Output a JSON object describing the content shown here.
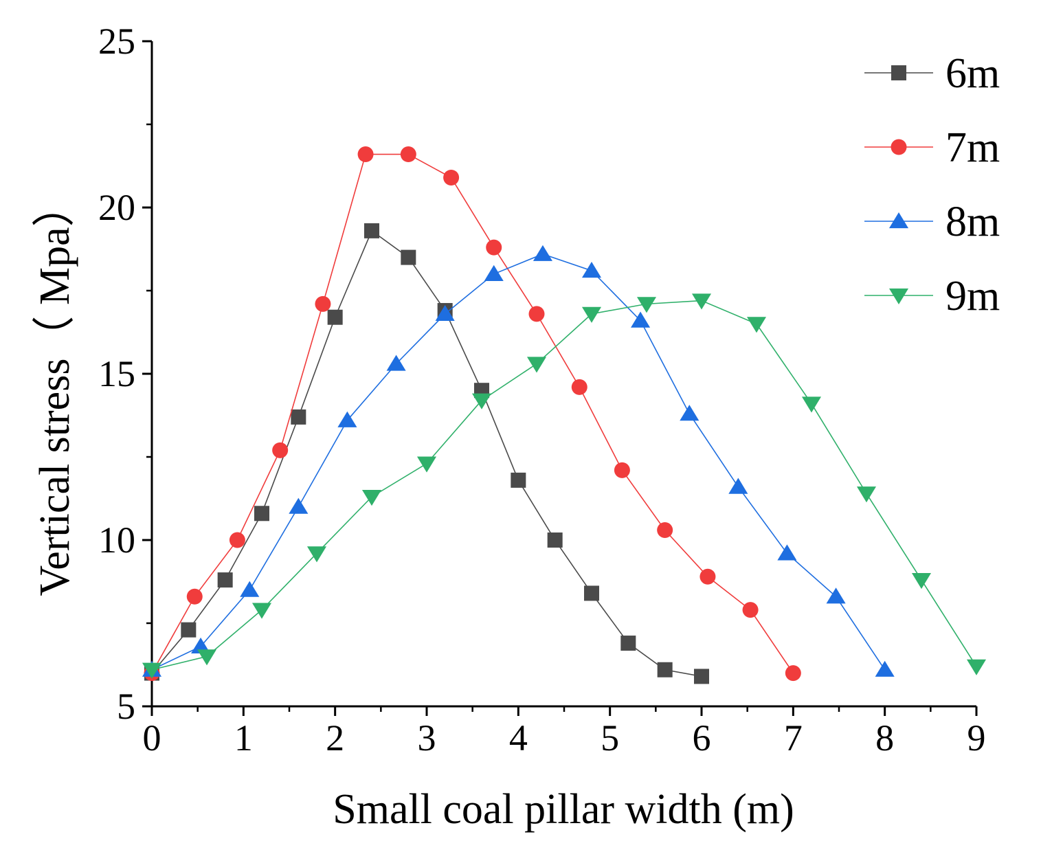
{
  "chart_data": {
    "type": "line",
    "title": "",
    "xlabel": "Small coal pillar width (m)",
    "ylabel": "Vertical stress（ Mpa）",
    "xlim": [
      0,
      9
    ],
    "ylim": [
      5,
      25
    ],
    "x_ticks": [
      0,
      1,
      2,
      3,
      4,
      5,
      6,
      7,
      8,
      9
    ],
    "y_ticks": [
      5,
      10,
      15,
      20,
      25
    ],
    "x_tick_labels": [
      "0",
      "1",
      "2",
      "3",
      "4",
      "5",
      "6",
      "7",
      "8",
      "9"
    ],
    "y_tick_labels": [
      "5",
      "10",
      "15",
      "20",
      "25"
    ],
    "grid": false,
    "legend_position": "top-right",
    "series": [
      {
        "name": "6m",
        "color": "#4a4a4a",
        "marker": "square",
        "x": [
          0,
          0.4,
          0.8,
          1.2,
          1.6,
          2.0,
          2.4,
          2.8,
          3.2,
          3.6,
          4.0,
          4.4,
          4.8,
          5.2,
          5.6,
          6.0
        ],
        "y": [
          6.0,
          7.3,
          8.8,
          10.8,
          13.7,
          16.7,
          19.3,
          18.5,
          16.9,
          14.5,
          11.8,
          10.0,
          8.4,
          6.9,
          6.1,
          5.9
        ]
      },
      {
        "name": "7m",
        "color": "#f03c3c",
        "marker": "circle",
        "x": [
          0,
          0.467,
          0.933,
          1.4,
          1.867,
          2.333,
          2.8,
          3.267,
          3.733,
          4.2,
          4.667,
          5.133,
          5.6,
          6.067,
          6.533,
          7.0
        ],
        "y": [
          6.0,
          8.3,
          10.0,
          12.7,
          17.1,
          21.6,
          21.6,
          20.9,
          18.8,
          16.8,
          14.6,
          12.1,
          10.3,
          8.9,
          7.9,
          6.0
        ]
      },
      {
        "name": "8m",
        "color": "#1e6ee0",
        "marker": "triangle-up",
        "x": [
          0,
          0.533,
          1.067,
          1.6,
          2.133,
          2.667,
          3.2,
          3.733,
          4.267,
          4.8,
          5.333,
          5.867,
          6.4,
          6.933,
          7.467,
          8.0
        ],
        "y": [
          6.1,
          6.8,
          8.5,
          11.0,
          13.6,
          15.3,
          16.8,
          18.0,
          18.6,
          18.1,
          16.6,
          13.8,
          11.6,
          9.6,
          8.3,
          6.1
        ]
      },
      {
        "name": "9m",
        "color": "#2fb06a",
        "marker": "triangle-down",
        "x": [
          0,
          0.6,
          1.2,
          1.8,
          2.4,
          3.0,
          3.6,
          4.2,
          4.8,
          5.4,
          6.0,
          6.6,
          7.2,
          7.8,
          8.4,
          9.0
        ],
        "y": [
          6.1,
          6.5,
          7.9,
          9.6,
          11.3,
          12.3,
          14.2,
          15.3,
          16.8,
          17.1,
          17.2,
          16.5,
          14.1,
          11.4,
          8.8,
          6.2
        ]
      }
    ]
  }
}
